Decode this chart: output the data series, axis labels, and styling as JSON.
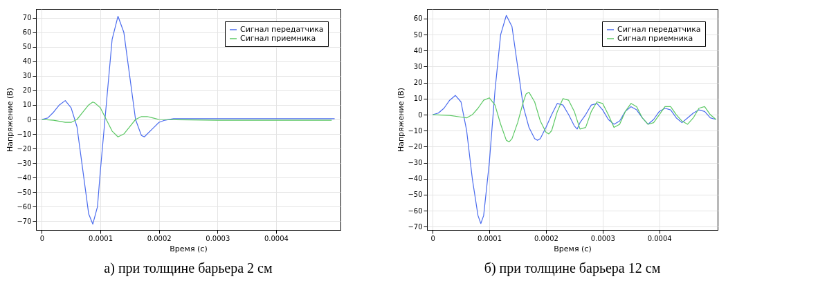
{
  "chart_data": [
    {
      "type": "line",
      "xlabel": "Время (с)",
      "ylabel": "Напряжение (В)",
      "annotations": [
        "а) при толщине барьера 2 см"
      ],
      "xlim": [
        -1e-05,
        0.00051
      ],
      "ylim": [
        -76,
        76
      ],
      "xticks": [
        0,
        0.0001,
        0.0002,
        0.0003,
        0.0004
      ],
      "yticks": [
        -70,
        -60,
        -50,
        -40,
        -30,
        -20,
        -10,
        0,
        10,
        20,
        30,
        40,
        50,
        60,
        70
      ],
      "grid": true,
      "legend": "top right",
      "line_style": "solid",
      "series": [
        {
          "name": "Сигнал передатчика",
          "color": "#4a6bee",
          "x": [
            0,
            1e-05,
            2e-05,
            3e-05,
            4e-05,
            5e-05,
            6e-05,
            7e-05,
            8e-05,
            8.7e-05,
            9.5e-05,
            0.0001,
            0.00011,
            0.00012,
            0.00013,
            0.00014,
            0.00015,
            0.00016,
            0.00017,
            0.000175,
            0.00019,
            0.0002,
            0.00021,
            0.000225,
            0.00035,
            0.0005
          ],
          "values": [
            0,
            1,
            5,
            10,
            13,
            8,
            -5,
            -35,
            -65,
            -72,
            -60,
            -35,
            10,
            55,
            71,
            60,
            30,
            0,
            -11,
            -12,
            -6,
            -2,
            -0.5,
            0.5,
            0.5,
            0.5
          ]
        },
        {
          "name": "Сигнал приемника",
          "color": "#5cc864",
          "x": [
            0,
            2e-05,
            4e-05,
            5e-05,
            6e-05,
            7e-05,
            8e-05,
            8.7e-05,
            9e-05,
            0.0001,
            0.00011,
            0.00012,
            0.00013,
            0.00014,
            0.00015,
            0.00016,
            0.00017,
            0.00018,
            0.00019,
            0.0002,
            0.0003,
            0.0004,
            0.000495
          ],
          "values": [
            0,
            -0.5,
            -2,
            -2,
            0,
            5,
            10,
            12,
            11.5,
            8,
            0,
            -8,
            -12,
            -10,
            -5,
            0,
            2,
            2,
            1,
            0,
            -0.5,
            -0.5,
            -0.5
          ]
        }
      ]
    },
    {
      "type": "line",
      "xlabel": "Время (с)",
      "ylabel": "Напряжение (В)",
      "annotations": [
        "б) при толщине барьера 12 см"
      ],
      "xlim": [
        -1e-05,
        0.000503
      ],
      "ylim": [
        -72,
        66
      ],
      "xticks": [
        0,
        0.0001,
        0.0002,
        0.0003,
        0.0004
      ],
      "yticks": [
        -70,
        -60,
        -50,
        -40,
        -30,
        -20,
        -10,
        0,
        10,
        20,
        30,
        40,
        50,
        60
      ],
      "grid": true,
      "legend": "top right",
      "line_style": "solid",
      "series": [
        {
          "name": "Сигнал передатчика",
          "color": "#4a6bee",
          "x": [
            0,
            1e-05,
            2e-05,
            3e-05,
            4e-05,
            5e-05,
            6e-05,
            7e-05,
            8e-05,
            8.5e-05,
            9e-05,
            0.0001,
            0.00011,
            0.00012,
            0.00013,
            0.00014,
            0.00015,
            0.00016,
            0.00017,
            0.00018,
            0.000185,
            0.00019,
            0.0002,
            0.00021,
            0.00022,
            0.00023,
            0.00024,
            0.00025,
            0.000255,
            0.00026,
            0.00027,
            0.00028,
            0.00029,
            0.0003,
            0.00031,
            0.00032,
            0.00033,
            0.00034,
            0.00035,
            0.00036,
            0.00037,
            0.00038,
            0.00039,
            0.0004,
            0.00041,
            0.00042,
            0.00043,
            0.00044,
            0.00045,
            0.00046,
            0.00047,
            0.00048,
            0.00049,
            0.0005
          ],
          "values": [
            0,
            1,
            4,
            9,
            12,
            8,
            -10,
            -40,
            -63,
            -68,
            -63,
            -30,
            15,
            50,
            62,
            55,
            30,
            5,
            -8,
            -15,
            -16,
            -15,
            -8,
            0,
            7,
            6,
            0,
            -7,
            -9,
            -5,
            0,
            6,
            7,
            3,
            -3,
            -6,
            -4,
            2,
            5,
            3,
            -2,
            -6,
            -3,
            2,
            4,
            3,
            -2,
            -5,
            -2,
            1,
            3,
            2,
            -2,
            -3
          ]
        },
        {
          "name": "Сигнал приемника",
          "color": "#5cc864",
          "x": [
            0,
            3e-05,
            5e-05,
            6e-05,
            7e-05,
            8e-05,
            9e-05,
            0.0001,
            0.00011,
            0.00012,
            0.00013,
            0.000135,
            0.00014,
            0.00015,
            0.00016,
            0.000165,
            0.00017,
            0.00018,
            0.00019,
            0.0002,
            0.000205,
            0.00021,
            0.00022,
            0.00023,
            0.00024,
            0.00025,
            0.00026,
            0.00027,
            0.00028,
            0.00029,
            0.0003,
            0.00031,
            0.00032,
            0.00033,
            0.00034,
            0.00035,
            0.00036,
            0.00037,
            0.00038,
            0.00039,
            0.0004,
            0.00041,
            0.00042,
            0.00043,
            0.00044,
            0.00045,
            0.00046,
            0.00047,
            0.00048,
            0.00049,
            0.0005
          ],
          "values": [
            0,
            -0.5,
            -1.5,
            -2,
            0,
            4,
            9,
            10.5,
            6,
            -6,
            -16,
            -17,
            -15,
            -5,
            8,
            13,
            14,
            8,
            -4,
            -11,
            -12,
            -10,
            2,
            10,
            9,
            2,
            -9,
            -8,
            2,
            8,
            7,
            0,
            -8,
            -6,
            2,
            7,
            5,
            -2,
            -6,
            -5,
            0,
            5,
            5,
            0,
            -4,
            -6,
            -2,
            4,
            5,
            0,
            -3
          ]
        }
      ]
    }
  ]
}
